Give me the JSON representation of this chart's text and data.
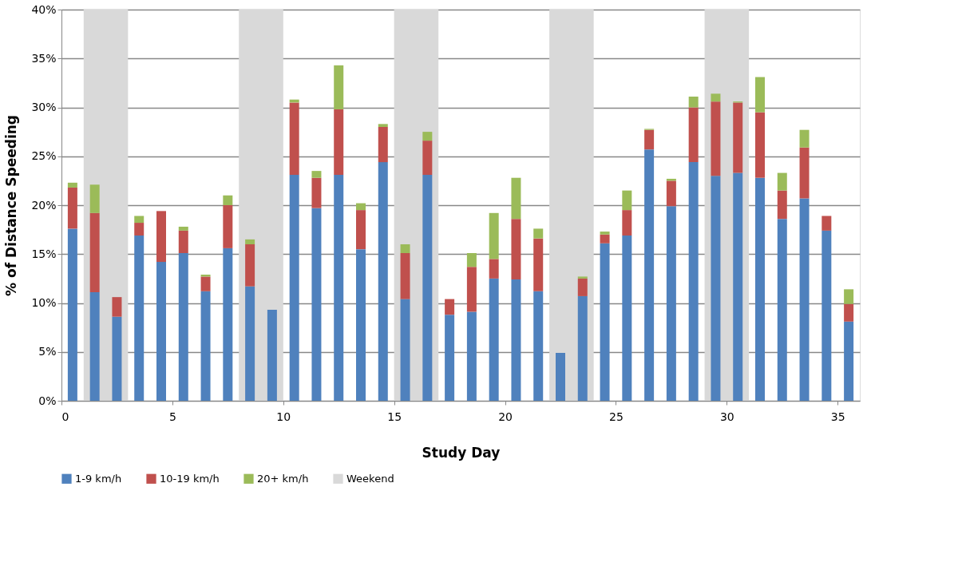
{
  "chart_data": {
    "type": "bar",
    "stacked": true,
    "xlabel": "Study Day",
    "ylabel": "% of Distance Speeding",
    "x": [
      0.5,
      1.5,
      2.5,
      3.5,
      4.5,
      5.5,
      6.5,
      7.5,
      8.5,
      9.5,
      10.5,
      11.5,
      12.5,
      13.5,
      14.5,
      15.5,
      16.5,
      17.5,
      18.5,
      19.5,
      20.5,
      21.5,
      22.5,
      23.5,
      24.5,
      25.5,
      26.5,
      27.5,
      28.5,
      29.5,
      30.5,
      31.5,
      32.5,
      33.5,
      34.5,
      35.5
    ],
    "series": [
      {
        "name": "1-9 km/h",
        "color": "#4f81bd",
        "values": [
          17.6,
          11.1,
          8.6,
          16.9,
          14.2,
          15.1,
          11.2,
          15.6,
          11.7,
          9.3,
          23.1,
          19.7,
          23.1,
          15.5,
          24.4,
          10.4,
          23.1,
          8.8,
          9.1,
          12.5,
          12.4,
          11.2,
          4.9,
          10.7,
          16.1,
          16.9,
          25.7,
          19.9,
          24.4,
          23.0,
          23.3,
          22.8,
          18.6,
          20.7,
          17.4,
          8.1
        ]
      },
      {
        "name": "10-19 km/h",
        "color": "#c0504d",
        "values": [
          4.2,
          8.1,
          2.0,
          1.3,
          5.2,
          2.3,
          1.5,
          4.4,
          4.3,
          null,
          7.4,
          3.1,
          6.7,
          4.0,
          3.6,
          4.7,
          3.5,
          1.6,
          4.6,
          2.0,
          6.2,
          5.4,
          null,
          1.8,
          0.9,
          2.6,
          2.0,
          2.6,
          5.6,
          7.6,
          7.2,
          6.7,
          2.9,
          5.2,
          1.5,
          1.8
        ]
      },
      {
        "name": "20+ km/h",
        "color": "#9bbb59",
        "values": [
          0.5,
          2.9,
          null,
          0.7,
          null,
          0.4,
          0.2,
          1.0,
          0.5,
          null,
          0.3,
          0.7,
          4.5,
          0.7,
          0.3,
          0.9,
          0.9,
          null,
          1.4,
          4.7,
          4.2,
          1.0,
          null,
          0.2,
          0.3,
          2.0,
          0.1,
          0.2,
          1.1,
          0.8,
          0.1,
          3.6,
          1.8,
          1.8,
          null,
          1.5
        ]
      }
    ],
    "bands": [
      {
        "axis": "x",
        "from": 1,
        "to": 3,
        "label": "Weekend",
        "color": "#d9d9d9"
      },
      {
        "axis": "x",
        "from": 8,
        "to": 10,
        "color": "#d9d9d9"
      },
      {
        "axis": "x",
        "from": 15,
        "to": 17,
        "color": "#d9d9d9"
      },
      {
        "axis": "x",
        "from": 22,
        "to": 24,
        "color": "#d9d9d9"
      },
      {
        "axis": "x",
        "from": 29,
        "to": 31,
        "color": "#d9d9d9"
      }
    ],
    "xlim": [
      0,
      36
    ],
    "xticks": [
      0,
      5,
      10,
      15,
      20,
      25,
      30,
      35
    ],
    "ylim": [
      0,
      40
    ],
    "yticks": [
      {
        "value": 0,
        "label": "0%"
      },
      {
        "value": 5,
        "label": "5%"
      },
      {
        "value": 10,
        "label": "10%"
      },
      {
        "value": 15,
        "label": "15%"
      },
      {
        "value": 20,
        "label": "20%"
      },
      {
        "value": 25,
        "label": "25%"
      },
      {
        "value": 30,
        "label": "30%"
      },
      {
        "value": 35,
        "label": "35%"
      },
      {
        "value": 40,
        "label": "40%"
      }
    ],
    "grid": "y",
    "legend": "bottom"
  }
}
